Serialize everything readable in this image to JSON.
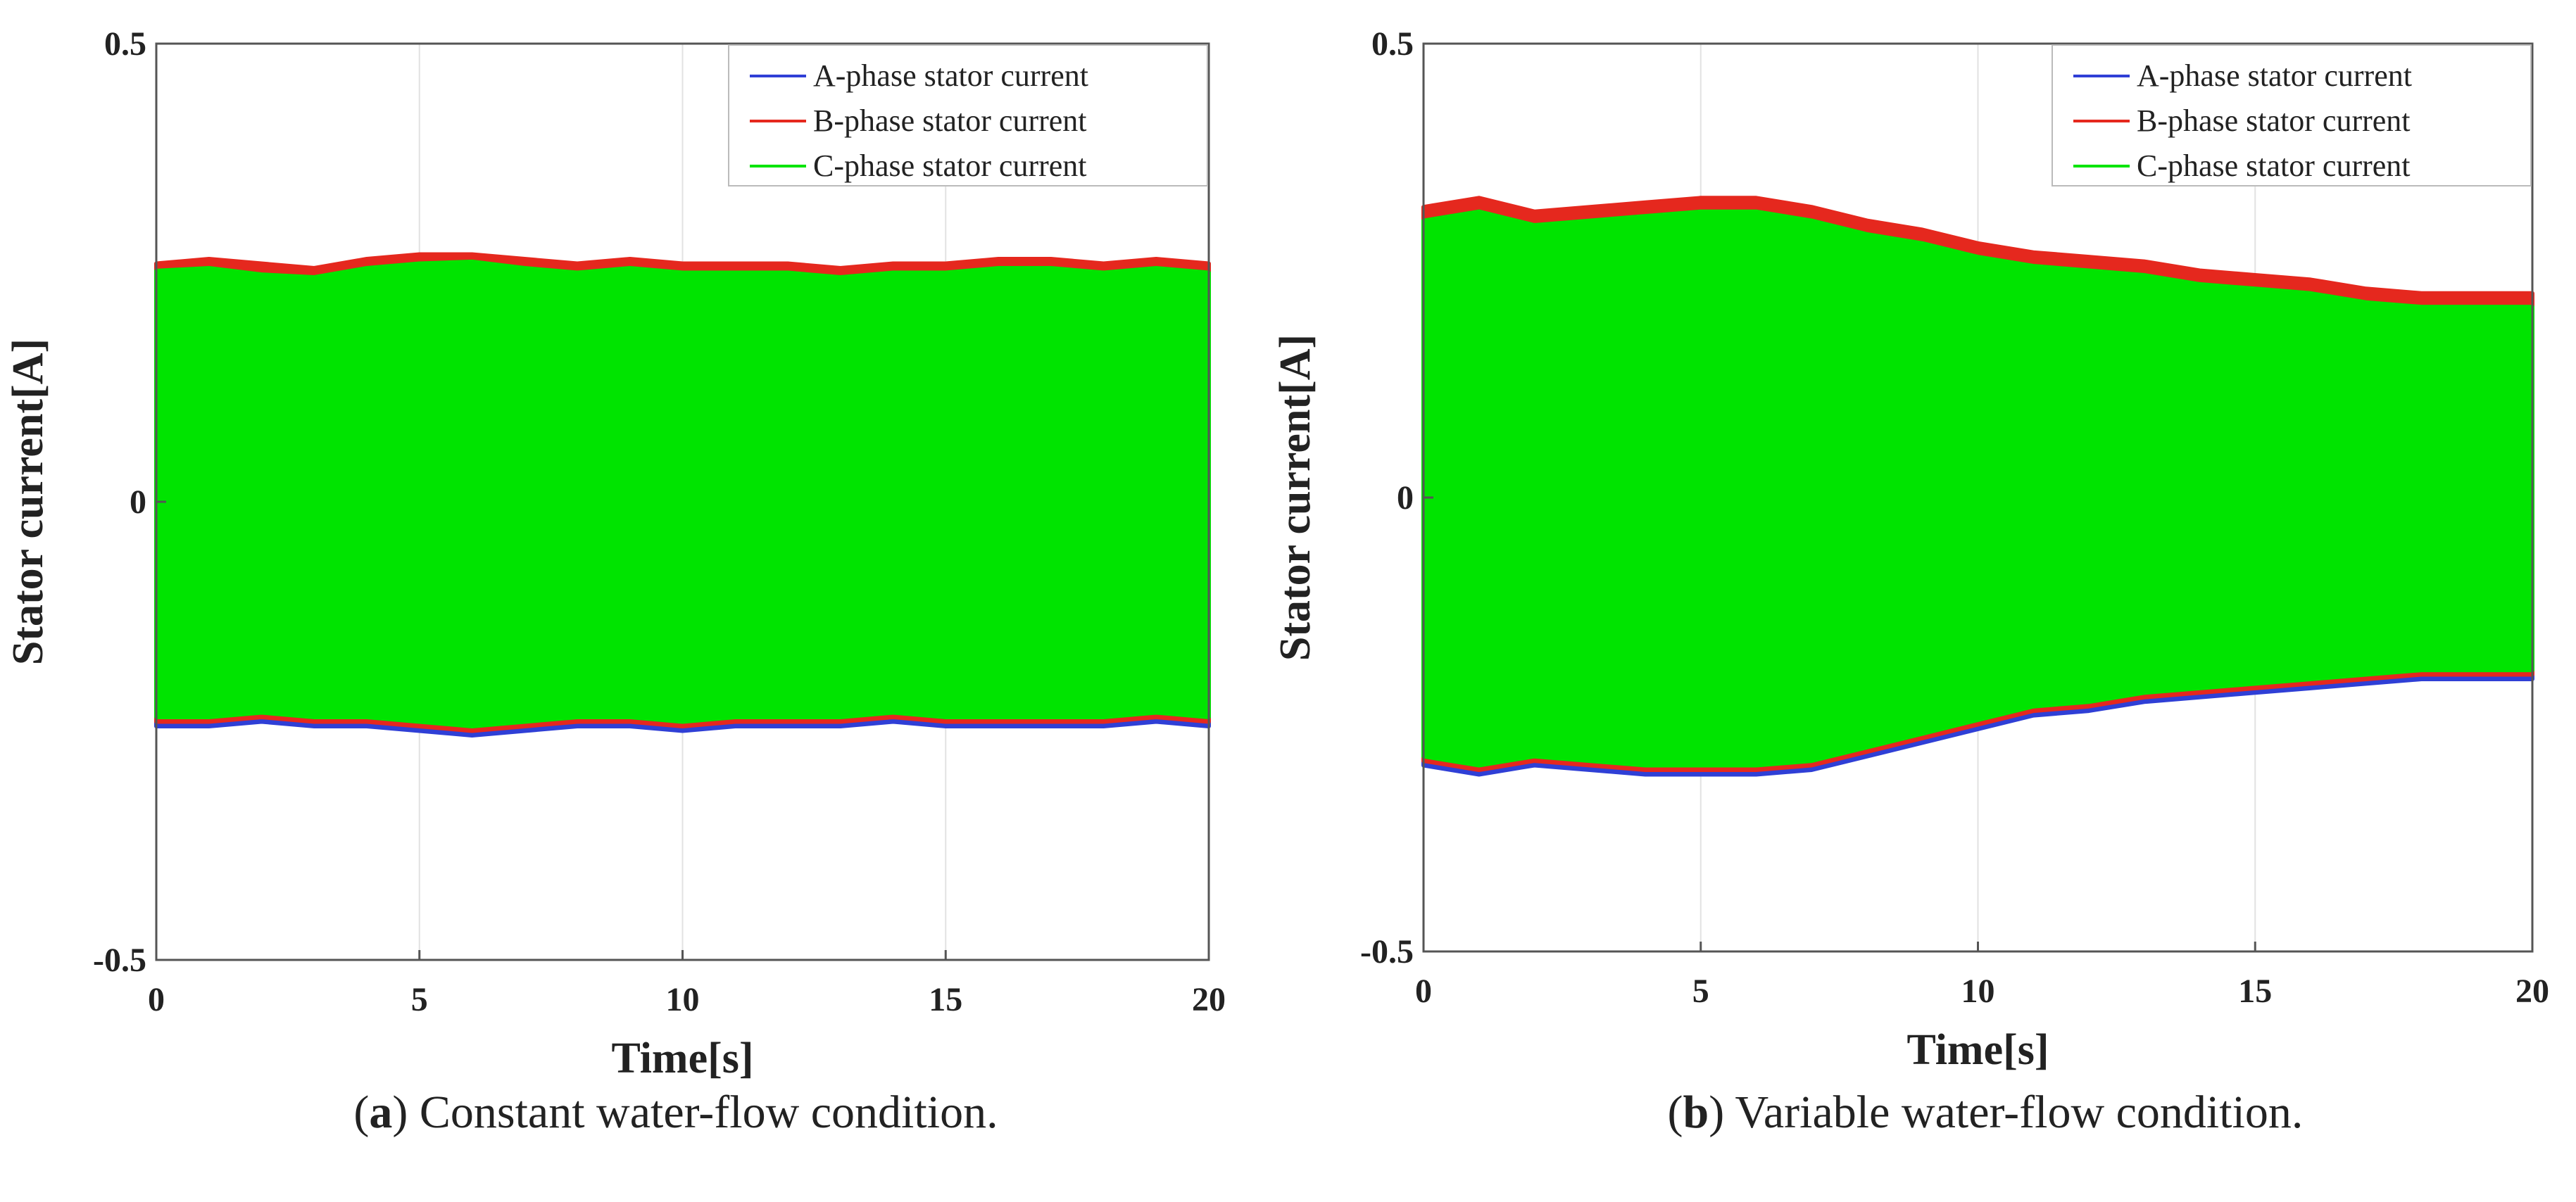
{
  "chart_data": [
    {
      "type": "line",
      "panel": "a",
      "caption_letter": "a",
      "caption_text": "Constant water-flow condition.",
      "title": "",
      "xlabel": "Time[s]",
      "ylabel": "Stator current[A]",
      "xlim": [
        0,
        20
      ],
      "ylim": [
        -0.5,
        0.5
      ],
      "xticks": [
        0,
        5,
        10,
        15,
        20
      ],
      "xtick_labels": [
        "0",
        "5",
        "10",
        "15",
        "20"
      ],
      "yticks": [
        0.5,
        0,
        -0.5
      ],
      "ytick_labels": [
        "0.5",
        "0",
        "-0.5"
      ],
      "grid": true,
      "legend_position": "top-right",
      "envelope_time": [
        0,
        1,
        2,
        3,
        4,
        5,
        6,
        7,
        8,
        9,
        10,
        11,
        12,
        13,
        14,
        15,
        16,
        17,
        18,
        19,
        20
      ],
      "series": [
        {
          "name": "A-phase stator current",
          "color": "#2f3fd6",
          "upper": [
            0.255,
            0.255,
            0.25,
            0.25,
            0.26,
            0.265,
            0.265,
            0.26,
            0.255,
            0.26,
            0.255,
            0.255,
            0.255,
            0.25,
            0.255,
            0.255,
            0.26,
            0.26,
            0.255,
            0.26,
            0.255
          ],
          "lower": [
            -0.245,
            -0.245,
            -0.24,
            -0.245,
            -0.245,
            -0.25,
            -0.255,
            -0.25,
            -0.245,
            -0.245,
            -0.25,
            -0.245,
            -0.245,
            -0.245,
            -0.24,
            -0.245,
            -0.245,
            -0.245,
            -0.245,
            -0.24,
            -0.245
          ]
        },
        {
          "name": "B-phase stator current",
          "color": "#e5281e",
          "upper": [
            0.26,
            0.265,
            0.26,
            0.255,
            0.265,
            0.27,
            0.27,
            0.265,
            0.26,
            0.265,
            0.26,
            0.26,
            0.26,
            0.255,
            0.26,
            0.26,
            0.265,
            0.265,
            0.26,
            0.265,
            0.26
          ],
          "lower": [
            -0.24,
            -0.24,
            -0.235,
            -0.24,
            -0.24,
            -0.245,
            -0.25,
            -0.245,
            -0.24,
            -0.24,
            -0.245,
            -0.24,
            -0.24,
            -0.24,
            -0.235,
            -0.24,
            -0.24,
            -0.24,
            -0.24,
            -0.235,
            -0.24
          ]
        },
        {
          "name": "C-phase stator current",
          "color": "#00e400",
          "upper": [
            0.252,
            0.255,
            0.248,
            0.245,
            0.255,
            0.26,
            0.262,
            0.255,
            0.25,
            0.255,
            0.25,
            0.25,
            0.25,
            0.245,
            0.25,
            0.25,
            0.255,
            0.255,
            0.25,
            0.255,
            0.25
          ],
          "lower": [
            -0.235,
            -0.235,
            -0.23,
            -0.235,
            -0.235,
            -0.24,
            -0.245,
            -0.24,
            -0.235,
            -0.235,
            -0.24,
            -0.235,
            -0.235,
            -0.235,
            -0.23,
            -0.235,
            -0.235,
            -0.235,
            -0.235,
            -0.23,
            -0.235
          ]
        }
      ]
    },
    {
      "type": "line",
      "panel": "b",
      "caption_letter": "b",
      "caption_text": "Variable water-flow condition.",
      "title": "",
      "xlabel": "Time[s]",
      "ylabel": "Stator current[A]",
      "xlim": [
        0,
        20
      ],
      "ylim": [
        -0.5,
        0.5
      ],
      "xticks": [
        0,
        5,
        10,
        15,
        20
      ],
      "xtick_labels": [
        "0",
        "5",
        "10",
        "15",
        "20"
      ],
      "yticks": [
        0.5,
        0,
        -0.5
      ],
      "ytick_labels": [
        "0.5",
        "0",
        "-0.5"
      ],
      "grid": true,
      "legend_position": "top-right",
      "envelope_time": [
        0,
        1,
        2,
        3,
        4,
        5,
        6,
        7,
        8,
        9,
        10,
        11,
        12,
        13,
        14,
        15,
        16,
        17,
        18,
        19,
        20
      ],
      "series": [
        {
          "name": "A-phase stator current",
          "color": "#2f3fd6",
          "upper": [
            0.315,
            0.325,
            0.31,
            0.315,
            0.32,
            0.325,
            0.325,
            0.315,
            0.3,
            0.29,
            0.275,
            0.265,
            0.26,
            0.255,
            0.245,
            0.24,
            0.235,
            0.225,
            0.22,
            0.22,
            0.22
          ],
          "lower": [
            -0.295,
            -0.305,
            -0.295,
            -0.3,
            -0.305,
            -0.305,
            -0.305,
            -0.3,
            -0.285,
            -0.27,
            -0.255,
            -0.24,
            -0.235,
            -0.225,
            -0.22,
            -0.215,
            -0.21,
            -0.205,
            -0.2,
            -0.2,
            -0.2
          ]
        },
        {
          "name": "B-phase stator current",
          "color": "#e5281e",
          "upper": [
            0.32,
            0.33,
            0.315,
            0.32,
            0.325,
            0.33,
            0.33,
            0.32,
            0.305,
            0.295,
            0.28,
            0.27,
            0.265,
            0.26,
            0.25,
            0.245,
            0.24,
            0.23,
            0.225,
            0.225,
            0.225
          ],
          "lower": [
            -0.29,
            -0.3,
            -0.29,
            -0.295,
            -0.3,
            -0.3,
            -0.3,
            -0.295,
            -0.28,
            -0.265,
            -0.25,
            -0.235,
            -0.23,
            -0.22,
            -0.215,
            -0.21,
            -0.205,
            -0.2,
            -0.195,
            -0.195,
            -0.195
          ]
        },
        {
          "name": "C-phase stator current",
          "color": "#00e400",
          "upper": [
            0.305,
            0.315,
            0.3,
            0.305,
            0.31,
            0.315,
            0.315,
            0.305,
            0.29,
            0.28,
            0.265,
            0.255,
            0.25,
            0.245,
            0.235,
            0.23,
            0.225,
            0.215,
            0.21,
            0.21,
            0.21
          ],
          "lower": [
            -0.285,
            -0.295,
            -0.285,
            -0.29,
            -0.295,
            -0.295,
            -0.295,
            -0.29,
            -0.275,
            -0.26,
            -0.245,
            -0.23,
            -0.225,
            -0.215,
            -0.21,
            -0.205,
            -0.2,
            -0.195,
            -0.19,
            -0.19,
            -0.19
          ]
        }
      ]
    }
  ]
}
